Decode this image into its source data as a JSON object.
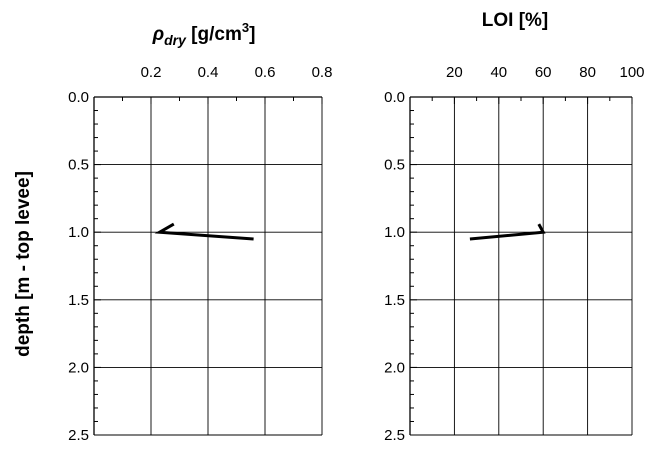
{
  "chart_data": [
    {
      "type": "line",
      "title": "ρdry [g/cm3]",
      "title_parts": {
        "symbol": "ρ",
        "subscript": "dry",
        "unit_open": " [g/cm",
        "unit_sup": "3",
        "unit_close": "]"
      },
      "xlabel": "ρdry [g/cm3]",
      "ylabel": "depth [m - top levee]",
      "xlim": [
        0.0,
        0.8
      ],
      "ylim": [
        0.0,
        2.5
      ],
      "y_inverted": true,
      "x_axis_position": "top",
      "x_ticks": [
        0.2,
        0.4,
        0.6,
        0.8
      ],
      "x_tick_labels": [
        "0.2",
        "0.4",
        "0.6",
        "0.8"
      ],
      "y_ticks": [
        0.0,
        0.5,
        1.0,
        1.5,
        2.0,
        2.5
      ],
      "y_tick_labels": [
        "0.0",
        "0.5",
        "1.0",
        "1.5",
        "2.0",
        "2.5"
      ],
      "grid": true,
      "series": [
        {
          "x": [
            0.28,
            0.23,
            0.56
          ],
          "y": [
            0.94,
            1.0,
            1.05
          ],
          "color": "#000000"
        }
      ]
    },
    {
      "type": "line",
      "title": "LOI [%]",
      "xlabel": "LOI [%]",
      "ylabel": "",
      "xlim": [
        0,
        100
      ],
      "ylim": [
        0.0,
        2.5
      ],
      "y_inverted": true,
      "x_axis_position": "top",
      "x_ticks": [
        20,
        40,
        60,
        80,
        100
      ],
      "x_tick_labels": [
        "20",
        "40",
        "60",
        "80",
        "100"
      ],
      "y_ticks": [
        0.0,
        0.5,
        1.0,
        1.5,
        2.0,
        2.5
      ],
      "y_tick_labels": [
        "0.0",
        "0.5",
        "1.0",
        "1.5",
        "2.0",
        "2.5"
      ],
      "grid": true,
      "series": [
        {
          "x": [
            58,
            60,
            27
          ],
          "y": [
            0.94,
            1.0,
            1.05
          ],
          "color": "#000000"
        }
      ]
    }
  ]
}
